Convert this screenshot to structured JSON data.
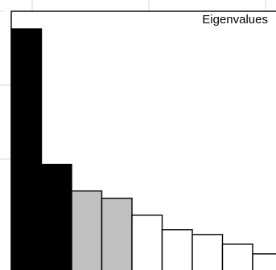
{
  "chart_data": {
    "type": "bar",
    "legend_label": "Eigenvalues",
    "legend_position": "top-right",
    "values": [
      100,
      44,
      33,
      30,
      23,
      17,
      15,
      11,
      7
    ],
    "bar_colors": [
      "#000000",
      "#000000",
      "#c0c0c0",
      "#c0c0c0",
      "#ffffff",
      "#ffffff",
      "#ffffff",
      "#ffffff",
      "#ffffff"
    ],
    "ylim": [
      0,
      100
    ],
    "grid": true
  }
}
